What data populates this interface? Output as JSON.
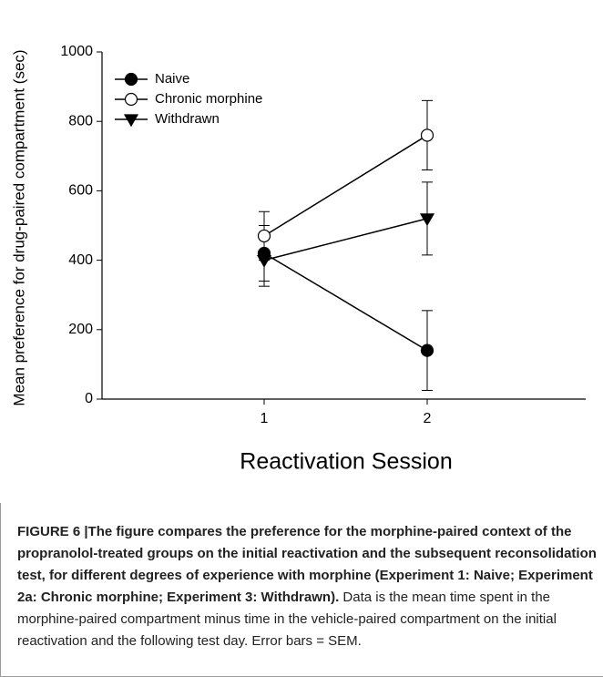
{
  "chart_data": {
    "type": "line",
    "xlabel": "Reactivation Session",
    "ylabel": "Mean preference for drug-paired compartment (sec)",
    "x": [
      1,
      2
    ],
    "xlim": [
      0,
      3
    ],
    "xticks": [
      1,
      2
    ],
    "ylim": [
      0,
      1000
    ],
    "yticks": [
      0,
      200,
      400,
      600,
      800,
      1000
    ],
    "legend": "upper left",
    "series": [
      {
        "name": "Naive",
        "color": "#000000",
        "marker": "filled-circle",
        "values": [
          420,
          140
        ],
        "errors": [
          80,
          115
        ]
      },
      {
        "name": "Chronic morphine",
        "color": "#000000",
        "marker": "open-circle",
        "values": [
          470,
          760
        ],
        "errors": [
          70,
          100
        ]
      },
      {
        "name": "Withdrawn",
        "color": "#000000",
        "marker": "filled-triangle-down",
        "values": [
          400,
          520
        ],
        "errors": [
          75,
          105
        ]
      }
    ]
  },
  "caption": {
    "label": "FIGURE 6 |",
    "title": "The figure compares the preference for the morphine-paired context of the propranolol-treated groups on the initial reactivation and the subsequent reconsolidation test, for different degrees of experience with morphine (Experiment 1: Naive; Experiment 2a: Chronic morphine; Experiment 3: Withdrawn).",
    "body": "Data is the mean time spent in the morphine-paired compartment minus time in the vehicle-paired compartment on the initial reactivation and the following test day. Error bars = SEM."
  }
}
